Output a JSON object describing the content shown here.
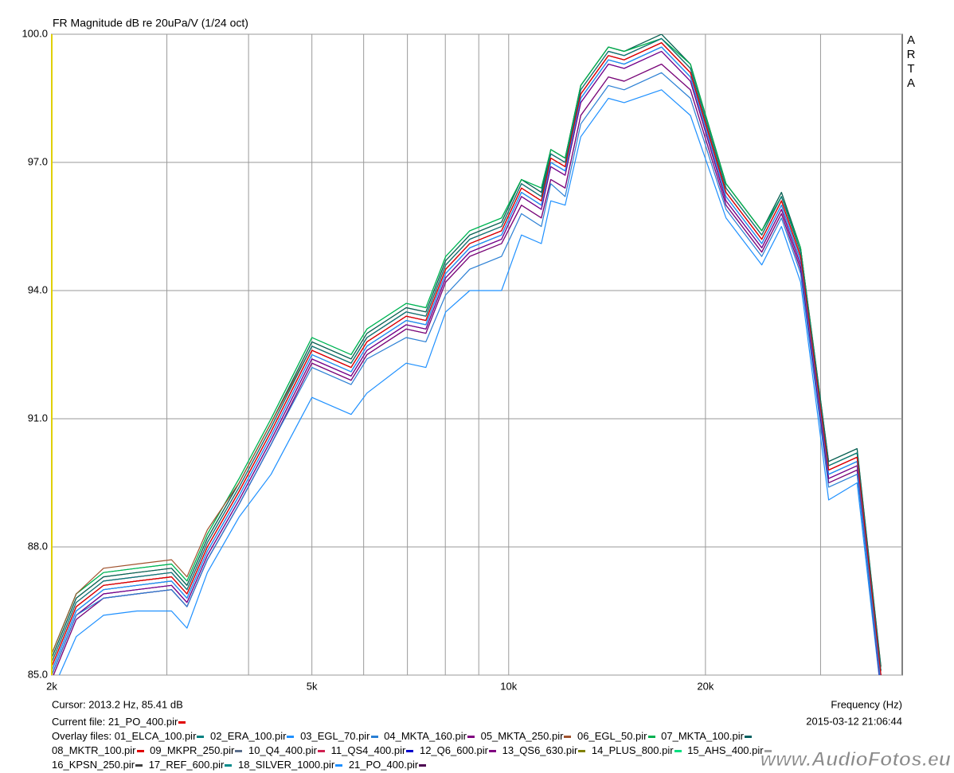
{
  "chart_data": {
    "type": "line",
    "title": "FR Magnitude dB re 20uPa/V (1/24 oct)",
    "brand": "ARTA",
    "xlabel": "Frequency (Hz)",
    "cursor": "Cursor: 2013.2 Hz, 85.41 dB",
    "timestamp": "2015-03-12  21:06:44",
    "current_label": "Current file:",
    "overlay_label": "Overlay files:",
    "watermark": "www.AudioFotos.eu",
    "log_x": true,
    "grid": true,
    "xlim": [
      2000,
      40000
    ],
    "ylim": [
      85,
      100
    ],
    "xticks": [
      {
        "value": 2000,
        "label": "2k"
      },
      {
        "value": 5000,
        "label": "5k"
      },
      {
        "value": 10000,
        "label": "10k"
      },
      {
        "value": 20000,
        "label": "20k"
      }
    ],
    "xgrid": [
      3000,
      4000,
      6000,
      7000,
      8000,
      9000,
      30000
    ],
    "yticks": [
      {
        "value": 85,
        "label": "85.0"
      },
      {
        "value": 88,
        "label": "88.0"
      },
      {
        "value": 91,
        "label": "91.0"
      },
      {
        "value": 94,
        "label": "94.0"
      },
      {
        "value": 97,
        "label": "97.0"
      },
      {
        "value": 100,
        "label": "100.0"
      }
    ],
    "x": [
      2000,
      2180,
      2400,
      2700,
      3050,
      3220,
      3460,
      3870,
      4330,
      5000,
      5740,
      6070,
      6970,
      7470,
      8010,
      8720,
      9750,
      10460,
      11220,
      11600,
      12200,
      12890,
      14210,
      15020,
      17130,
      18970,
      21500,
      24390,
      26140,
      27960,
      30870,
      34120,
      37100
    ],
    "series": [
      {
        "name": "21_PO_400.pir",
        "color": "#e00000",
        "values": [
          85.2,
          86.6,
          87.1,
          87.2,
          87.3,
          86.9,
          88.0,
          89.3,
          90.7,
          92.6,
          92.2,
          92.8,
          93.4,
          93.3,
          94.5,
          95.1,
          95.4,
          96.4,
          96.1,
          97.1,
          96.9,
          98.6,
          99.5,
          99.4,
          99.8,
          99.1,
          96.3,
          95.2,
          96.1,
          94.8,
          89.8,
          90.1,
          85.0
        ]
      },
      {
        "name": "01_ELCA_100.pir",
        "color": "#008080",
        "values": [
          85.3,
          86.7,
          87.2,
          87.3,
          87.4,
          87.0,
          88.1,
          89.4,
          90.8,
          92.7,
          92.3,
          92.9,
          93.5,
          93.4,
          94.6,
          95.2,
          95.5,
          96.5,
          96.2,
          97.2,
          97.0,
          98.7,
          99.6,
          99.5,
          99.9,
          99.2,
          96.4,
          95.3,
          96.2,
          94.9,
          89.9,
          90.2,
          85.1
        ]
      },
      {
        "name": "02_ERA_100.pir",
        "color": "#1e90ff",
        "values": [
          85.1,
          86.5,
          87.0,
          87.1,
          87.2,
          86.8,
          87.9,
          89.2,
          90.6,
          92.5,
          92.1,
          92.7,
          93.3,
          93.2,
          94.4,
          95.0,
          95.3,
          96.3,
          96.0,
          97.0,
          96.8,
          98.5,
          99.4,
          99.3,
          99.7,
          99.0,
          96.2,
          95.1,
          96.0,
          94.7,
          89.7,
          90.0,
          84.9
        ]
      },
      {
        "name": "03_EGL_70.pir",
        "color": "#2a7fd4",
        "values": [
          85.0,
          86.4,
          86.8,
          86.9,
          87.0,
          86.6,
          87.7,
          89.0,
          90.4,
          92.2,
          91.8,
          92.4,
          92.9,
          92.8,
          93.9,
          94.5,
          94.8,
          95.8,
          95.5,
          96.5,
          96.2,
          97.9,
          98.8,
          98.7,
          99.1,
          98.5,
          95.9,
          94.8,
          95.7,
          94.4,
          89.4,
          89.7,
          84.8
        ]
      },
      {
        "name": "04_MKTA_160.pir",
        "color": "#800080",
        "values": [
          85.0,
          86.4,
          86.9,
          87.0,
          87.1,
          86.7,
          87.8,
          89.1,
          90.5,
          92.4,
          92.0,
          92.6,
          93.2,
          93.1,
          94.3,
          94.9,
          95.2,
          96.2,
          95.9,
          96.9,
          96.7,
          98.4,
          99.3,
          99.2,
          99.6,
          98.9,
          96.1,
          95.0,
          95.9,
          94.6,
          89.6,
          89.9,
          84.8
        ]
      },
      {
        "name": "05_MKTA_250.pir",
        "color": "#a0522d",
        "values": [
          85.5,
          86.9,
          87.5,
          87.6,
          87.7,
          87.3,
          88.4,
          89.5,
          90.9,
          92.7,
          92.3,
          92.9,
          93.5,
          93.4,
          94.6,
          95.2,
          95.5,
          96.5,
          96.2,
          97.2,
          97.0,
          98.7,
          99.6,
          99.5,
          99.9,
          99.2,
          96.4,
          95.3,
          96.2,
          94.9,
          89.9,
          90.2,
          85.1
        ]
      },
      {
        "name": "06_EGL_50.pir",
        "color": "#00b050",
        "values": [
          85.5,
          86.9,
          87.4,
          87.5,
          87.6,
          87.2,
          88.3,
          89.6,
          91.0,
          92.9,
          92.5,
          93.1,
          93.7,
          93.6,
          94.8,
          95.4,
          95.7,
          96.6,
          96.4,
          97.3,
          97.1,
          98.8,
          99.7,
          99.6,
          99.9,
          99.3,
          96.5,
          95.4,
          96.2,
          95.0,
          89.9,
          90.2,
          85.1
        ]
      },
      {
        "name": "07_MKTA_100.pir",
        "color": "#006060",
        "values": [
          85.4,
          86.8,
          87.3,
          87.4,
          87.5,
          87.1,
          88.2,
          89.5,
          90.9,
          92.8,
          92.4,
          93.0,
          93.6,
          93.5,
          94.7,
          95.3,
          95.6,
          96.6,
          96.3,
          97.3,
          97.1,
          98.8,
          99.7,
          99.6,
          100.0,
          99.3,
          96.5,
          95.4,
          96.3,
          95.0,
          90.0,
          90.3,
          85.2
        ]
      },
      {
        "name": "08_MKTR_100.pir",
        "color": "#e00000",
        "values": [
          85.2,
          86.6,
          87.1,
          87.2,
          87.3,
          86.9,
          88.0,
          89.3,
          90.7,
          92.6,
          92.2,
          92.8,
          93.4,
          93.3,
          94.5,
          95.1,
          95.4,
          96.4,
          96.1,
          97.1,
          96.9,
          98.6,
          99.5,
          99.4,
          99.8,
          99.1,
          96.3,
          95.2,
          96.1,
          94.8,
          89.8,
          90.1,
          85.0
        ]
      },
      {
        "name": "09_MKPR_250.pir",
        "color": "#5a6e8c",
        "values": [
          85.1,
          86.5,
          87.0,
          87.1,
          87.2,
          86.8,
          87.9,
          89.2,
          90.6,
          92.5,
          92.1,
          92.7,
          93.3,
          93.2,
          94.4,
          95.0,
          95.3,
          96.3,
          96.0,
          97.0,
          96.8,
          98.5,
          99.4,
          99.3,
          99.7,
          99.0,
          96.2,
          95.1,
          96.0,
          94.7,
          89.7,
          90.0,
          84.9
        ]
      },
      {
        "name": "10_Q4_400.pir",
        "color": "#d02050",
        "values": [
          85.3,
          86.7,
          87.2,
          87.3,
          87.4,
          87.0,
          88.1,
          89.4,
          90.8,
          92.7,
          92.3,
          92.9,
          93.5,
          93.4,
          94.6,
          95.2,
          95.5,
          96.5,
          96.2,
          97.2,
          97.0,
          98.7,
          99.6,
          99.5,
          99.9,
          99.2,
          96.4,
          95.3,
          96.2,
          94.9,
          89.9,
          90.2,
          85.1
        ]
      },
      {
        "name": "11_QS4_400.pir",
        "color": "#0000cc",
        "values": [
          85.0,
          86.4,
          86.9,
          87.0,
          87.1,
          86.7,
          87.8,
          89.1,
          90.5,
          92.4,
          92.0,
          92.6,
          93.2,
          93.1,
          94.3,
          94.9,
          95.2,
          96.2,
          95.9,
          96.9,
          96.7,
          98.4,
          99.3,
          99.2,
          99.6,
          98.9,
          96.1,
          95.0,
          95.9,
          94.6,
          89.6,
          89.9,
          84.8
        ]
      },
      {
        "name": "12_Q6_600.pir",
        "color": "#800080",
        "values": [
          84.9,
          86.3,
          86.8,
          86.9,
          87.0,
          86.6,
          87.7,
          89.0,
          90.4,
          92.3,
          91.9,
          92.5,
          93.1,
          93.0,
          94.2,
          94.8,
          95.1,
          96.0,
          95.7,
          96.6,
          96.4,
          98.1,
          99.0,
          98.9,
          99.3,
          98.7,
          96.0,
          94.9,
          95.8,
          94.5,
          89.5,
          89.8,
          84.7
        ]
      },
      {
        "name": "13_QS6_630.pir",
        "color": "#808000",
        "values": [
          85.4,
          86.8,
          87.3,
          87.4,
          87.5,
          87.1,
          88.2,
          89.5,
          90.9,
          92.8,
          92.4,
          93.0,
          93.6,
          93.5,
          94.7,
          95.3,
          95.6,
          96.6,
          96.3,
          97.3,
          97.1,
          98.8,
          99.7,
          99.6,
          100.0,
          99.3,
          96.5,
          95.4,
          96.3,
          95.0,
          90.0,
          90.3,
          85.2
        ]
      },
      {
        "name": "14_PLUS_800.pir",
        "color": "#00e080",
        "values": [
          85.5,
          86.9,
          87.4,
          87.5,
          87.6,
          87.2,
          88.3,
          89.6,
          91.0,
          92.9,
          92.5,
          93.1,
          93.7,
          93.6,
          94.8,
          95.4,
          95.7,
          96.6,
          96.4,
          97.3,
          97.1,
          98.8,
          99.7,
          99.6,
          99.9,
          99.3,
          96.5,
          95.4,
          96.2,
          95.0,
          89.9,
          90.2,
          85.1
        ]
      },
      {
        "name": "15_AHS_400.pir",
        "color": "#a0a0a0",
        "values": [
          85.3,
          86.7,
          87.2,
          87.3,
          87.4,
          87.0,
          88.1,
          89.4,
          90.8,
          92.7,
          92.3,
          92.9,
          93.5,
          93.4,
          94.6,
          95.2,
          95.5,
          96.5,
          96.2,
          97.2,
          97.0,
          98.7,
          99.6,
          99.5,
          99.9,
          99.2,
          96.4,
          95.3,
          96.2,
          94.9,
          89.9,
          90.2,
          85.1
        ]
      },
      {
        "name": "16_KPSN_250.pir",
        "color": "#404040",
        "values": [
          84.9,
          86.3,
          86.8,
          86.9,
          87.0,
          86.6,
          87.7,
          89.0,
          90.4,
          92.3,
          91.9,
          92.5,
          93.1,
          93.0,
          94.2,
          94.8,
          95.1,
          96.0,
          95.7,
          96.6,
          96.4,
          98.1,
          99.0,
          98.9,
          99.3,
          98.7,
          96.0,
          94.9,
          95.8,
          94.5,
          89.5,
          89.8,
          84.7
        ]
      },
      {
        "name": "17_REF_600.pir",
        "color": "#008b8b",
        "values": [
          85.1,
          86.5,
          87.0,
          87.1,
          87.2,
          86.8,
          87.9,
          89.2,
          90.6,
          92.5,
          92.1,
          92.7,
          93.3,
          93.2,
          94.4,
          95.0,
          95.3,
          96.3,
          96.0,
          97.0,
          96.8,
          98.5,
          99.4,
          99.3,
          99.7,
          99.0,
          96.2,
          95.1,
          96.0,
          94.7,
          89.7,
          90.0,
          84.9
        ]
      },
      {
        "name": "18_SILVER_1000.pir",
        "color": "#1e90ff",
        "values": [
          84.6,
          85.9,
          86.4,
          86.5,
          86.5,
          86.1,
          87.4,
          88.7,
          89.7,
          91.5,
          91.1,
          91.6,
          92.3,
          92.2,
          93.5,
          94.0,
          94.0,
          95.3,
          95.1,
          96.1,
          96.0,
          97.6,
          98.5,
          98.4,
          98.7,
          98.1,
          95.7,
          94.6,
          95.5,
          94.2,
          89.1,
          89.5,
          84.6
        ]
      },
      {
        "name": "21_PO_400.pir",
        "color": "#4b0050",
        "values": [
          85.2,
          86.6,
          87.1,
          87.2,
          87.3,
          86.9,
          88.0,
          89.3,
          90.7,
          92.6,
          92.2,
          92.8,
          93.4,
          93.3,
          94.5,
          95.1,
          95.4,
          96.4,
          96.1,
          97.1,
          96.9,
          98.6,
          99.5,
          99.4,
          99.8,
          99.1,
          96.3,
          95.2,
          96.1,
          94.8,
          89.8,
          90.1,
          85.0
        ]
      }
    ]
  }
}
